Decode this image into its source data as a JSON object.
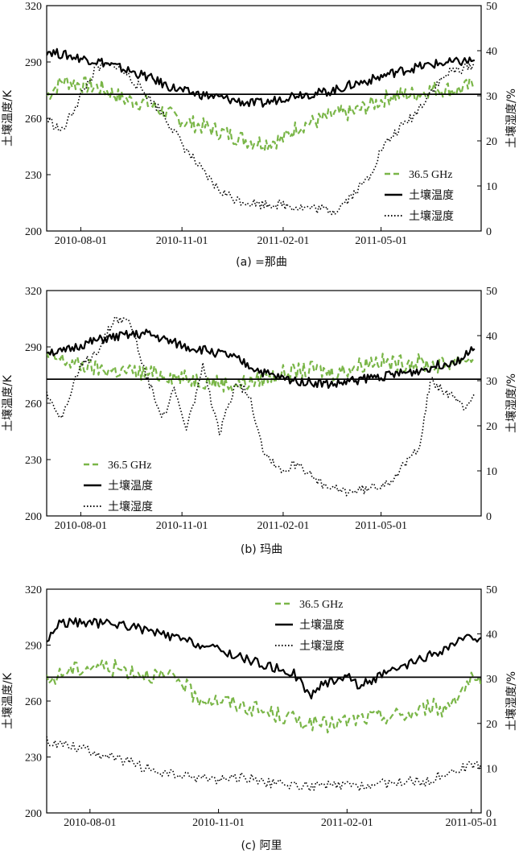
{
  "colors": {
    "microwave": "#7ab648",
    "temp": "#000000",
    "moisture": "#000000",
    "axis": "#000000"
  },
  "chart_data": [
    {
      "type": "line",
      "caption": "(a) =那曲",
      "y_left": {
        "label": "土壤温度/K",
        "ticks": [
          200,
          230,
          260,
          290,
          320
        ],
        "lim": [
          200,
          320
        ]
      },
      "y_right": {
        "label": "土壤湿度/%",
        "ticks": [
          0,
          10,
          20,
          30,
          40,
          50
        ],
        "lim": [
          0,
          50
        ]
      },
      "x": {
        "ticks": [
          "2010-08-01",
          "2010-11-01",
          "2011-02-01",
          "2011-05-01"
        ],
        "lim": [
          "2010-07-01",
          "2011-07-31"
        ]
      },
      "reference_line_K": 272.8,
      "legend": {
        "position": "lower-right",
        "entries": [
          "36.5 GHz",
          "土壤温度",
          "土壤湿度"
        ]
      },
      "series": [
        {
          "name": "36.5 GHz",
          "axis": "left",
          "style": "dashed",
          "color": "#7ab648",
          "points": [
            [
              "2010-07-01",
              272
            ],
            [
              "2010-07-15",
              280
            ],
            [
              "2010-08-01",
              278
            ],
            [
              "2010-08-20",
              276
            ],
            [
              "2010-09-10",
              270
            ],
            [
              "2010-10-01",
              268
            ],
            [
              "2010-10-20",
              262
            ],
            [
              "2010-11-05",
              258
            ],
            [
              "2010-11-25",
              255
            ],
            [
              "2010-12-15",
              251
            ],
            [
              "2011-01-01",
              248
            ],
            [
              "2011-01-15",
              247
            ],
            [
              "2011-02-01",
              249
            ],
            [
              "2011-02-15",
              256
            ],
            [
              "2011-03-01",
              258
            ],
            [
              "2011-03-20",
              262
            ],
            [
              "2011-04-05",
              263
            ],
            [
              "2011-04-25",
              268
            ],
            [
              "2011-05-10",
              272
            ],
            [
              "2011-06-01",
              273
            ],
            [
              "2011-06-20",
              276
            ],
            [
              "2011-07-10",
              275
            ],
            [
              "2011-07-25",
              278
            ]
          ]
        },
        {
          "name": "土壤温度",
          "axis": "left",
          "style": "solid",
          "color": "#000000",
          "points": [
            [
              "2010-07-01",
              296
            ],
            [
              "2010-07-15",
              294
            ],
            [
              "2010-08-01",
              292
            ],
            [
              "2010-08-20",
              290
            ],
            [
              "2010-09-10",
              286
            ],
            [
              "2010-10-01",
              282
            ],
            [
              "2010-10-20",
              277
            ],
            [
              "2010-11-05",
              274
            ],
            [
              "2010-11-25",
              272
            ],
            [
              "2010-12-15",
              270
            ],
            [
              "2011-01-01",
              268
            ],
            [
              "2011-01-15",
              268
            ],
            [
              "2011-02-01",
              271
            ],
            [
              "2011-02-15",
              273
            ],
            [
              "2011-03-01",
              273
            ],
            [
              "2011-03-20",
              275
            ],
            [
              "2011-04-05",
              278
            ],
            [
              "2011-04-25",
              281
            ],
            [
              "2011-05-10",
              284
            ],
            [
              "2011-06-01",
              287
            ],
            [
              "2011-06-20",
              289
            ],
            [
              "2011-07-10",
              290
            ],
            [
              "2011-07-25",
              291
            ]
          ]
        },
        {
          "name": "土壤湿度",
          "axis": "right",
          "style": "dotted",
          "color": "#000000",
          "points": [
            [
              "2010-07-01",
              25
            ],
            [
              "2010-07-15",
              22
            ],
            [
              "2010-08-01",
              30
            ],
            [
              "2010-08-15",
              36
            ],
            [
              "2010-09-01",
              37
            ],
            [
              "2010-09-15",
              34
            ],
            [
              "2010-10-01",
              30
            ],
            [
              "2010-10-15",
              26
            ],
            [
              "2010-10-25",
              22
            ],
            [
              "2010-11-05",
              18
            ],
            [
              "2010-11-20",
              13
            ],
            [
              "2010-12-05",
              9
            ],
            [
              "2010-12-20",
              7
            ],
            [
              "2011-01-10",
              6
            ],
            [
              "2011-01-25",
              6
            ],
            [
              "2011-02-10",
              5.5
            ],
            [
              "2011-03-01",
              5
            ],
            [
              "2011-03-20",
              4.5
            ],
            [
              "2011-04-05",
              8
            ],
            [
              "2011-04-20",
              12
            ],
            [
              "2011-05-01",
              18
            ],
            [
              "2011-05-15",
              22
            ],
            [
              "2011-06-01",
              26
            ],
            [
              "2011-06-15",
              31
            ],
            [
              "2011-07-01",
              35
            ],
            [
              "2011-07-25",
              37
            ]
          ]
        }
      ]
    },
    {
      "type": "line",
      "caption": "(b) 玛曲",
      "y_left": {
        "label": "土壤温度/K",
        "ticks": [
          200,
          230,
          260,
          290,
          320
        ],
        "lim": [
          200,
          320
        ]
      },
      "y_right": {
        "label": "土壤湿度/%",
        "ticks": [
          0,
          10,
          20,
          30,
          40,
          50
        ],
        "lim": [
          0,
          50
        ]
      },
      "x": {
        "ticks": [
          "2010-08-01",
          "2010-11-01",
          "2011-02-01",
          "2011-05-01"
        ],
        "lim": [
          "2010-07-01",
          "2011-07-31"
        ]
      },
      "reference_line_K": 272.8,
      "legend": {
        "position": "lower-left",
        "entries": [
          "36.5 GHz",
          "土壤温度",
          "土壤湿度"
        ]
      },
      "series": [
        {
          "name": "36.5 GHz",
          "axis": "left",
          "style": "dashed",
          "color": "#7ab648",
          "points": [
            [
              "2010-07-01",
              285
            ],
            [
              "2010-07-15",
              283
            ],
            [
              "2010-08-01",
              280
            ],
            [
              "2010-08-20",
              278
            ],
            [
              "2010-09-10",
              277
            ],
            [
              "2010-10-01",
              276
            ],
            [
              "2010-10-20",
              275
            ],
            [
              "2010-11-05",
              273
            ],
            [
              "2010-11-25",
              272
            ],
            [
              "2010-12-15",
              270
            ],
            [
              "2011-01-01",
              271
            ],
            [
              "2011-01-15",
              273
            ],
            [
              "2011-02-01",
              276
            ],
            [
              "2011-02-15",
              277
            ],
            [
              "2011-03-01",
              278
            ],
            [
              "2011-03-20",
              276
            ],
            [
              "2011-04-05",
              279
            ],
            [
              "2011-04-25",
              283
            ],
            [
              "2011-05-10",
              281
            ],
            [
              "2011-06-01",
              282
            ],
            [
              "2011-06-20",
              280
            ],
            [
              "2011-07-10",
              283
            ],
            [
              "2011-07-25",
              284
            ]
          ]
        },
        {
          "name": "土壤温度",
          "axis": "left",
          "style": "solid",
          "color": "#000000",
          "points": [
            [
              "2010-07-01",
              288
            ],
            [
              "2010-07-15",
              287
            ],
            [
              "2010-08-01",
              291
            ],
            [
              "2010-08-20",
              294
            ],
            [
              "2010-09-10",
              296
            ],
            [
              "2010-10-01",
              297
            ],
            [
              "2010-10-20",
              293
            ],
            [
              "2010-11-05",
              290
            ],
            [
              "2010-11-25",
              288
            ],
            [
              "2010-12-15",
              285
            ],
            [
              "2011-01-01",
              280
            ],
            [
              "2011-01-15",
              276
            ],
            [
              "2011-02-01",
              273
            ],
            [
              "2011-02-15",
              272
            ],
            [
              "2011-03-01",
              271
            ],
            [
              "2011-03-20",
              270
            ],
            [
              "2011-04-05",
              272
            ],
            [
              "2011-04-25",
              274
            ],
            [
              "2011-05-10",
              275
            ],
            [
              "2011-06-01",
              277
            ],
            [
              "2011-06-20",
              280
            ],
            [
              "2011-07-10",
              283
            ],
            [
              "2011-07-25",
              289
            ]
          ]
        },
        {
          "name": "土壤湿度",
          "axis": "right",
          "style": "dotted",
          "color": "#000000",
          "points": [
            [
              "2010-07-01",
              27
            ],
            [
              "2010-07-15",
              22
            ],
            [
              "2010-08-01",
              33
            ],
            [
              "2010-08-20",
              38
            ],
            [
              "2010-09-01",
              44
            ],
            [
              "2010-09-15",
              43
            ],
            [
              "2010-10-01",
              30
            ],
            [
              "2010-10-15",
              22
            ],
            [
              "2010-10-25",
              28
            ],
            [
              "2010-11-05",
              19
            ],
            [
              "2010-11-20",
              33
            ],
            [
              "2010-12-05",
              18
            ],
            [
              "2010-12-20",
              30
            ],
            [
              "2011-01-01",
              27
            ],
            [
              "2011-01-15",
              14
            ],
            [
              "2011-02-01",
              10
            ],
            [
              "2011-02-15",
              12
            ],
            [
              "2011-03-01",
              8
            ],
            [
              "2011-03-15",
              6
            ],
            [
              "2011-04-01",
              5.5
            ],
            [
              "2011-04-20",
              6
            ],
            [
              "2011-05-10",
              8
            ],
            [
              "2011-05-25",
              12
            ],
            [
              "2011-06-05",
              16
            ],
            [
              "2011-06-15",
              30
            ],
            [
              "2011-07-01",
              27
            ],
            [
              "2011-07-15",
              24
            ],
            [
              "2011-07-25",
              27
            ]
          ]
        }
      ]
    },
    {
      "type": "line",
      "caption": "(c) 阿里",
      "y_left": {
        "label": "土壤温度/K",
        "ticks": [
          200,
          230,
          260,
          290,
          320
        ],
        "lim": [
          200,
          320
        ]
      },
      "y_right": {
        "label": "土壤湿度/%",
        "ticks": [
          0,
          10,
          20,
          30,
          40,
          50
        ],
        "lim": [
          0,
          50
        ]
      },
      "x": {
        "ticks": [
          "2010-08-01",
          "2010-11-01",
          "2011-02-01",
          "2011-05-01"
        ],
        "lim": [
          "2010-07-01",
          "2011-05-08"
        ]
      },
      "reference_line_K": 272.8,
      "legend": {
        "position": "top-right",
        "entries": [
          "36.5 GHz",
          "土壤温度",
          "土壤湿度"
        ]
      },
      "series": [
        {
          "name": "36.5 GHz",
          "axis": "left",
          "style": "dashed",
          "color": "#7ab648",
          "points": [
            [
              "2010-07-01",
              270
            ],
            [
              "2010-07-15",
              276
            ],
            [
              "2010-08-05",
              279
            ],
            [
              "2010-08-25",
              277
            ],
            [
              "2010-09-15",
              274
            ],
            [
              "2010-10-05",
              271
            ],
            [
              "2010-10-15",
              262
            ],
            [
              "2010-11-05",
              260
            ],
            [
              "2010-11-25",
              256
            ],
            [
              "2010-12-15",
              252
            ],
            [
              "2011-01-01",
              249
            ],
            [
              "2011-01-15",
              247
            ],
            [
              "2011-02-01",
              249
            ],
            [
              "2011-02-15",
              251
            ],
            [
              "2011-03-01",
              252
            ],
            [
              "2011-03-20",
              253
            ],
            [
              "2011-04-01",
              258
            ],
            [
              "2011-04-10",
              255
            ],
            [
              "2011-04-20",
              263
            ],
            [
              "2011-05-01",
              271
            ],
            [
              "2011-05-08",
              268
            ]
          ]
        },
        {
          "name": "土壤温度",
          "axis": "left",
          "style": "solid",
          "color": "#000000",
          "points": [
            [
              "2010-07-01",
              292
            ],
            [
              "2010-07-10",
              302
            ],
            [
              "2010-08-01",
              302
            ],
            [
              "2010-08-25",
              301
            ],
            [
              "2010-09-15",
              297
            ],
            [
              "2010-10-05",
              293
            ],
            [
              "2010-10-25",
              289
            ],
            [
              "2010-11-15",
              284
            ],
            [
              "2010-12-05",
              279
            ],
            [
              "2010-12-25",
              275
            ],
            [
              "2011-01-05",
              263
            ],
            [
              "2011-01-15",
              269
            ],
            [
              "2011-02-01",
              274
            ],
            [
              "2011-02-10",
              268
            ],
            [
              "2011-02-20",
              272
            ],
            [
              "2011-03-10",
              277
            ],
            [
              "2011-03-25",
              282
            ],
            [
              "2011-04-10",
              287
            ],
            [
              "2011-04-25",
              293
            ],
            [
              "2011-05-08",
              294
            ]
          ]
        },
        {
          "name": "土壤湿度",
          "axis": "right",
          "style": "dotted",
          "color": "#000000",
          "points": [
            [
              "2010-07-01",
              16
            ],
            [
              "2010-07-20",
              15
            ],
            [
              "2010-08-10",
              13
            ],
            [
              "2010-09-01",
              11
            ],
            [
              "2010-09-20",
              9
            ],
            [
              "2010-10-10",
              8
            ],
            [
              "2010-11-01",
              7.5
            ],
            [
              "2010-11-20",
              8
            ],
            [
              "2010-12-10",
              6.5
            ],
            [
              "2011-01-01",
              6
            ],
            [
              "2011-01-20",
              6
            ],
            [
              "2011-02-10",
              6
            ],
            [
              "2011-02-25",
              6.5
            ],
            [
              "2011-03-15",
              7
            ],
            [
              "2011-04-01",
              7
            ],
            [
              "2011-04-10",
              9
            ],
            [
              "2011-04-25",
              10
            ],
            [
              "2011-05-08",
              11
            ]
          ]
        }
      ]
    }
  ]
}
